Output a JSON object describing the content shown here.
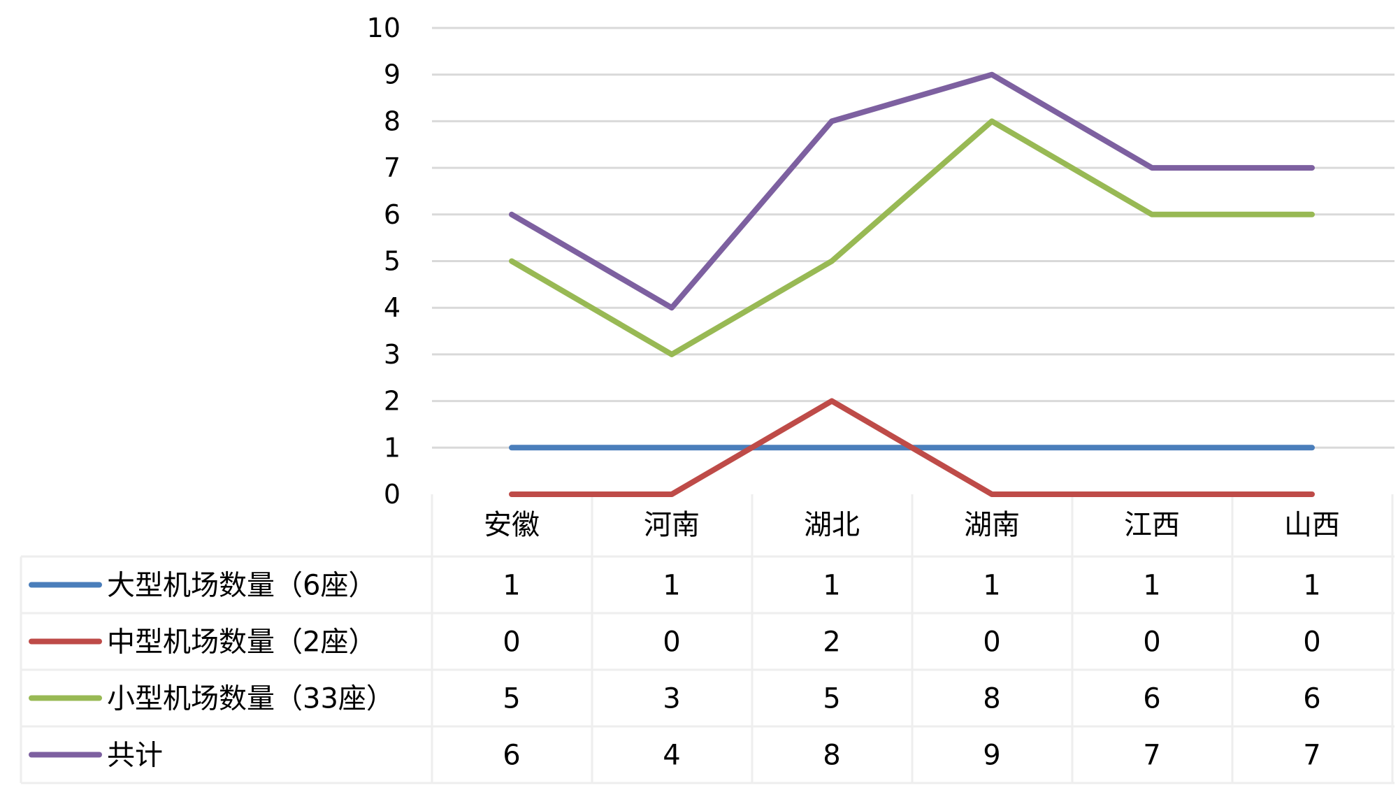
{
  "chart_data": {
    "type": "line",
    "title": "",
    "xlabel": "",
    "ylabel": "",
    "ylim": [
      0,
      10
    ],
    "y_ticks": [
      "0",
      "1",
      "2",
      "3",
      "4",
      "5",
      "6",
      "7",
      "8",
      "9",
      "10"
    ],
    "grid": true,
    "legend": "data-table-left",
    "categories": [
      "安徽",
      "河南",
      "湖北",
      "湖南",
      "江西",
      "山西"
    ],
    "series": [
      {
        "name": "大型机场数量（6座）",
        "color": "#4a7ebb",
        "values": [
          1,
          1,
          1,
          1,
          1,
          1
        ],
        "labels": [
          "1",
          "1",
          "1",
          "1",
          "1",
          "1"
        ]
      },
      {
        "name": "中型机场数量（2座）",
        "color": "#be4b48",
        "values": [
          0,
          0,
          2,
          0,
          0,
          0
        ],
        "labels": [
          "0",
          "0",
          "2",
          "0",
          "0",
          "0"
        ]
      },
      {
        "name": "小型机场数量（33座）",
        "color": "#98b954",
        "values": [
          5,
          3,
          5,
          8,
          6,
          6
        ],
        "labels": [
          "5",
          "3",
          "5",
          "8",
          "6",
          "6"
        ]
      },
      {
        "name": "共计",
        "color": "#7d60a0",
        "values": [
          6,
          4,
          8,
          9,
          7,
          7
        ],
        "labels": [
          "6",
          "4",
          "8",
          "9",
          "7",
          "7"
        ]
      }
    ]
  }
}
